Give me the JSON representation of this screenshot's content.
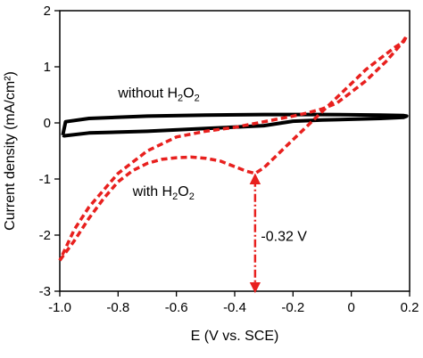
{
  "chart_data": {
    "type": "line",
    "title": "",
    "xlabel": "E (V vs. SCE)",
    "ylabel": "Current density (mA/cm²)",
    "xlim": [
      -1.0,
      0.2
    ],
    "ylim": [
      -3.0,
      2.0
    ],
    "x_ticks": [
      -1.0,
      -0.8,
      -0.6,
      -0.4,
      -0.2,
      0,
      0.2
    ],
    "x_tick_labels": [
      "-1.0",
      "-0.8",
      "-0.6",
      "-0.4",
      "-0.2",
      "0",
      "0.2"
    ],
    "y_ticks": [
      -3,
      -2,
      -1,
      0,
      1,
      2
    ],
    "y_tick_labels": [
      "-3",
      "-2",
      "-1",
      "0",
      "1",
      "2"
    ],
    "grid": false,
    "legend": "none",
    "series": [
      {
        "color": "#000000",
        "style": "solid",
        "x": [
          -0.99,
          -0.98,
          -0.9,
          -0.7,
          -0.5,
          -0.3,
          -0.1,
          0.1,
          0.18,
          0.19,
          0.18,
          0.1,
          -0.1,
          -0.2,
          -0.3,
          -0.5,
          -0.7,
          -0.9,
          -0.985,
          -0.99
        ],
        "y": [
          -0.22,
          0.02,
          0.08,
          0.12,
          0.14,
          0.15,
          0.15,
          0.14,
          0.13,
          0.12,
          0.1,
          0.08,
          0.05,
          0.03,
          -0.05,
          -0.1,
          -0.15,
          -0.18,
          -0.23,
          -0.22
        ]
      },
      {
        "color": "#e8201e",
        "style": "dashed",
        "x": [
          -1.0,
          -0.95,
          -0.9,
          -0.85,
          -0.8,
          -0.75,
          -0.7,
          -0.65,
          -0.6,
          -0.55,
          -0.5,
          -0.45,
          -0.4,
          -0.36,
          -0.33,
          -0.3,
          -0.25,
          -0.2,
          -0.15,
          -0.1,
          -0.05,
          0.0,
          0.05,
          0.1,
          0.15,
          0.18,
          0.19,
          0.17,
          0.12,
          0.05,
          0.0,
          -0.05,
          -0.1,
          -0.15,
          -0.2,
          -0.3,
          -0.4,
          -0.5,
          -0.6,
          -0.7,
          -0.8,
          -0.9,
          -0.95,
          -1.0
        ],
        "y": [
          -2.45,
          -2.1,
          -1.7,
          -1.35,
          -1.05,
          -0.85,
          -0.72,
          -0.65,
          -0.62,
          -0.61,
          -0.63,
          -0.68,
          -0.78,
          -0.86,
          -0.9,
          -0.8,
          -0.55,
          -0.3,
          -0.05,
          0.2,
          0.45,
          0.7,
          0.95,
          1.15,
          1.35,
          1.45,
          1.55,
          1.4,
          1.1,
          0.75,
          0.55,
          0.35,
          0.25,
          0.18,
          0.12,
          0.02,
          -0.08,
          -0.15,
          -0.25,
          -0.5,
          -0.9,
          -1.5,
          -1.9,
          -2.45
        ]
      }
    ],
    "annotations": [
      {
        "text": "without H2O2",
        "base": "without H",
        "sub1": "2",
        "mid": "O",
        "sub2": "2",
        "x": -0.8,
        "y": 0.45
      },
      {
        "text": "with H2O2",
        "base": "with H",
        "sub1": "2",
        "mid": "O",
        "sub2": "2",
        "x": -0.75,
        "y": -1.3
      },
      {
        "text": "-0.32 V",
        "x": -0.31,
        "y": -2.1
      }
    ],
    "marker": {
      "x": -0.33,
      "y_from": -0.9,
      "y_to": -3.0,
      "style": "dash-dot",
      "color": "#e8201e",
      "arrowheads": "both"
    }
  }
}
